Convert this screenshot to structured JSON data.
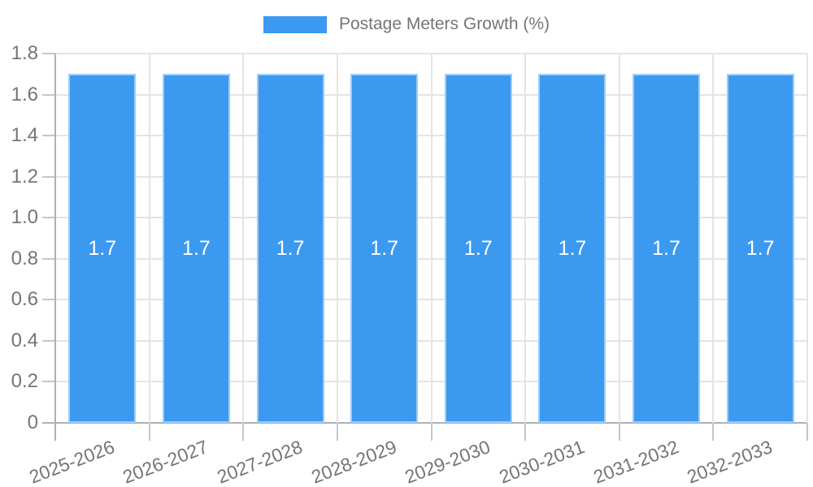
{
  "chart_data": {
    "type": "bar",
    "title": "",
    "legend_position": "top-center",
    "categories": [
      "2025-2026",
      "2026-2027",
      "2027-2028",
      "2028-2029",
      "2029-2030",
      "2030-2031",
      "2031-2032",
      "2032-2033"
    ],
    "series": [
      {
        "name": "Postage Meters Growth (%)",
        "values": [
          1.7,
          1.7,
          1.7,
          1.7,
          1.7,
          1.7,
          1.7,
          1.7
        ]
      }
    ],
    "value_labels": [
      "1.7",
      "1.7",
      "1.7",
      "1.7",
      "1.7",
      "1.7",
      "1.7",
      "1.7"
    ],
    "xlabel": "",
    "ylabel": "",
    "ylim": [
      0,
      1.8
    ],
    "ytick_values": [
      0,
      0.2,
      0.4,
      0.6,
      0.8,
      1.0,
      1.2,
      1.4,
      1.6,
      1.8
    ],
    "ytick_labels": [
      "0",
      "0.2",
      "0.4",
      "0.6",
      "0.8",
      "1.0",
      "1.2",
      "1.4",
      "1.6",
      "1.8"
    ],
    "grid": true,
    "x_label_rotation_deg": -21,
    "colors": {
      "bar": "#3B99F0",
      "bar_border": "rgba(255,255,255,0.5)",
      "axis_text": "#757575",
      "legend_text": "#757575",
      "value_label": "#ffffff",
      "grid": "#e4e4e4",
      "axis_line": "#b0b0b0",
      "tick": "#c6c6c6",
      "background": "#ffffff"
    }
  }
}
